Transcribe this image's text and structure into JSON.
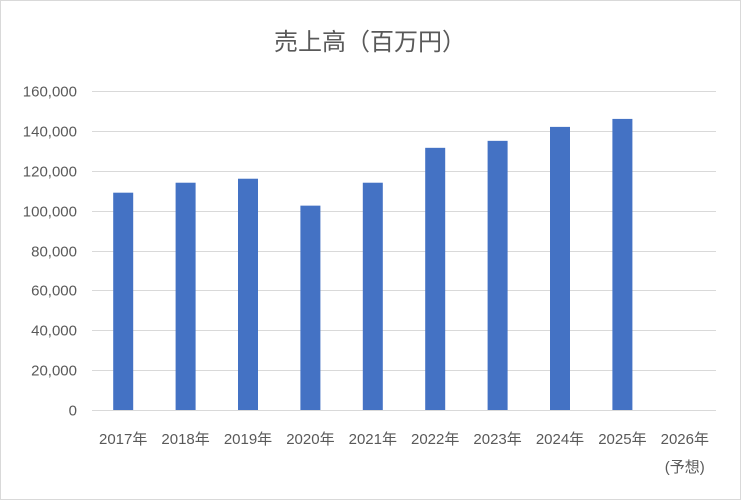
{
  "chart_data": {
    "type": "bar",
    "title": "売上高（百万円）",
    "categories": [
      "2017年",
      "2018年",
      "2019年",
      "2020年",
      "2021年",
      "2022年",
      "2023年",
      "2024年",
      "2025年",
      "2026年"
    ],
    "category_sublabels": [
      "",
      "",
      "",
      "",
      "",
      "",
      "",
      "",
      "",
      "(予想)"
    ],
    "values": [
      109000,
      114000,
      116000,
      102500,
      114000,
      131500,
      135000,
      142000,
      146000,
      null
    ],
    "xlabel": "",
    "ylabel": "",
    "ylim": [
      0,
      160000
    ],
    "y_ticks": [
      0,
      20000,
      40000,
      60000,
      80000,
      100000,
      120000,
      140000,
      160000
    ],
    "y_tick_labels": [
      "0",
      "20,000",
      "40,000",
      "60,000",
      "80,000",
      "100,000",
      "120,000",
      "140,000",
      "160,000"
    ],
    "grid": true,
    "legend": "none",
    "bar_color": "#4472c4",
    "grid_color": "#d9d9d9"
  }
}
